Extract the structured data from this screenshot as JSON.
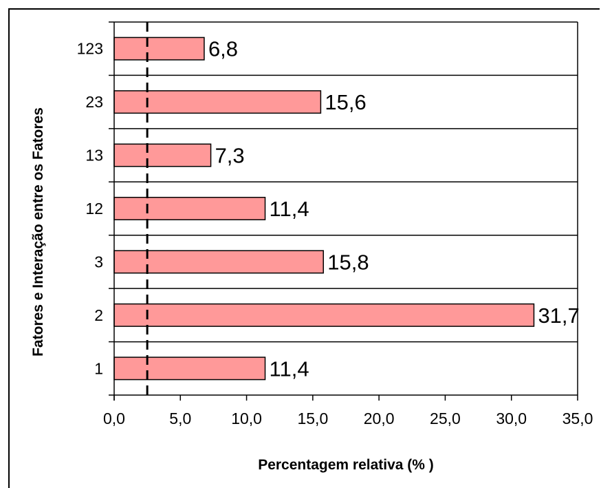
{
  "chart_data": {
    "type": "bar",
    "orientation": "horizontal",
    "categories": [
      "1",
      "2",
      "3",
      "12",
      "13",
      "23",
      "123"
    ],
    "values": [
      11.4,
      31.7,
      15.8,
      11.4,
      7.3,
      15.6,
      6.8
    ],
    "value_labels": [
      "11,4",
      "31,7",
      "15,8",
      "11,4",
      "7,3",
      "15,6",
      "6,8"
    ],
    "xlabel": "Percentagem relativa (% )",
    "ylabel": "Fatores e Interação entre os Fatores",
    "xlim": [
      0,
      35
    ],
    "xticks": [
      0,
      5,
      10,
      15,
      20,
      25,
      30,
      35
    ],
    "xtick_labels": [
      "0,0",
      "5,0",
      "10,0",
      "15,0",
      "20,0",
      "25,0",
      "30,0",
      "35,0"
    ],
    "reference_line": {
      "value": 2.5,
      "style": "dashed"
    },
    "grid": "horizontal",
    "legend": "none",
    "colors": {
      "bar_fill": "#ff9999",
      "bar_stroke": "#000000"
    }
  }
}
